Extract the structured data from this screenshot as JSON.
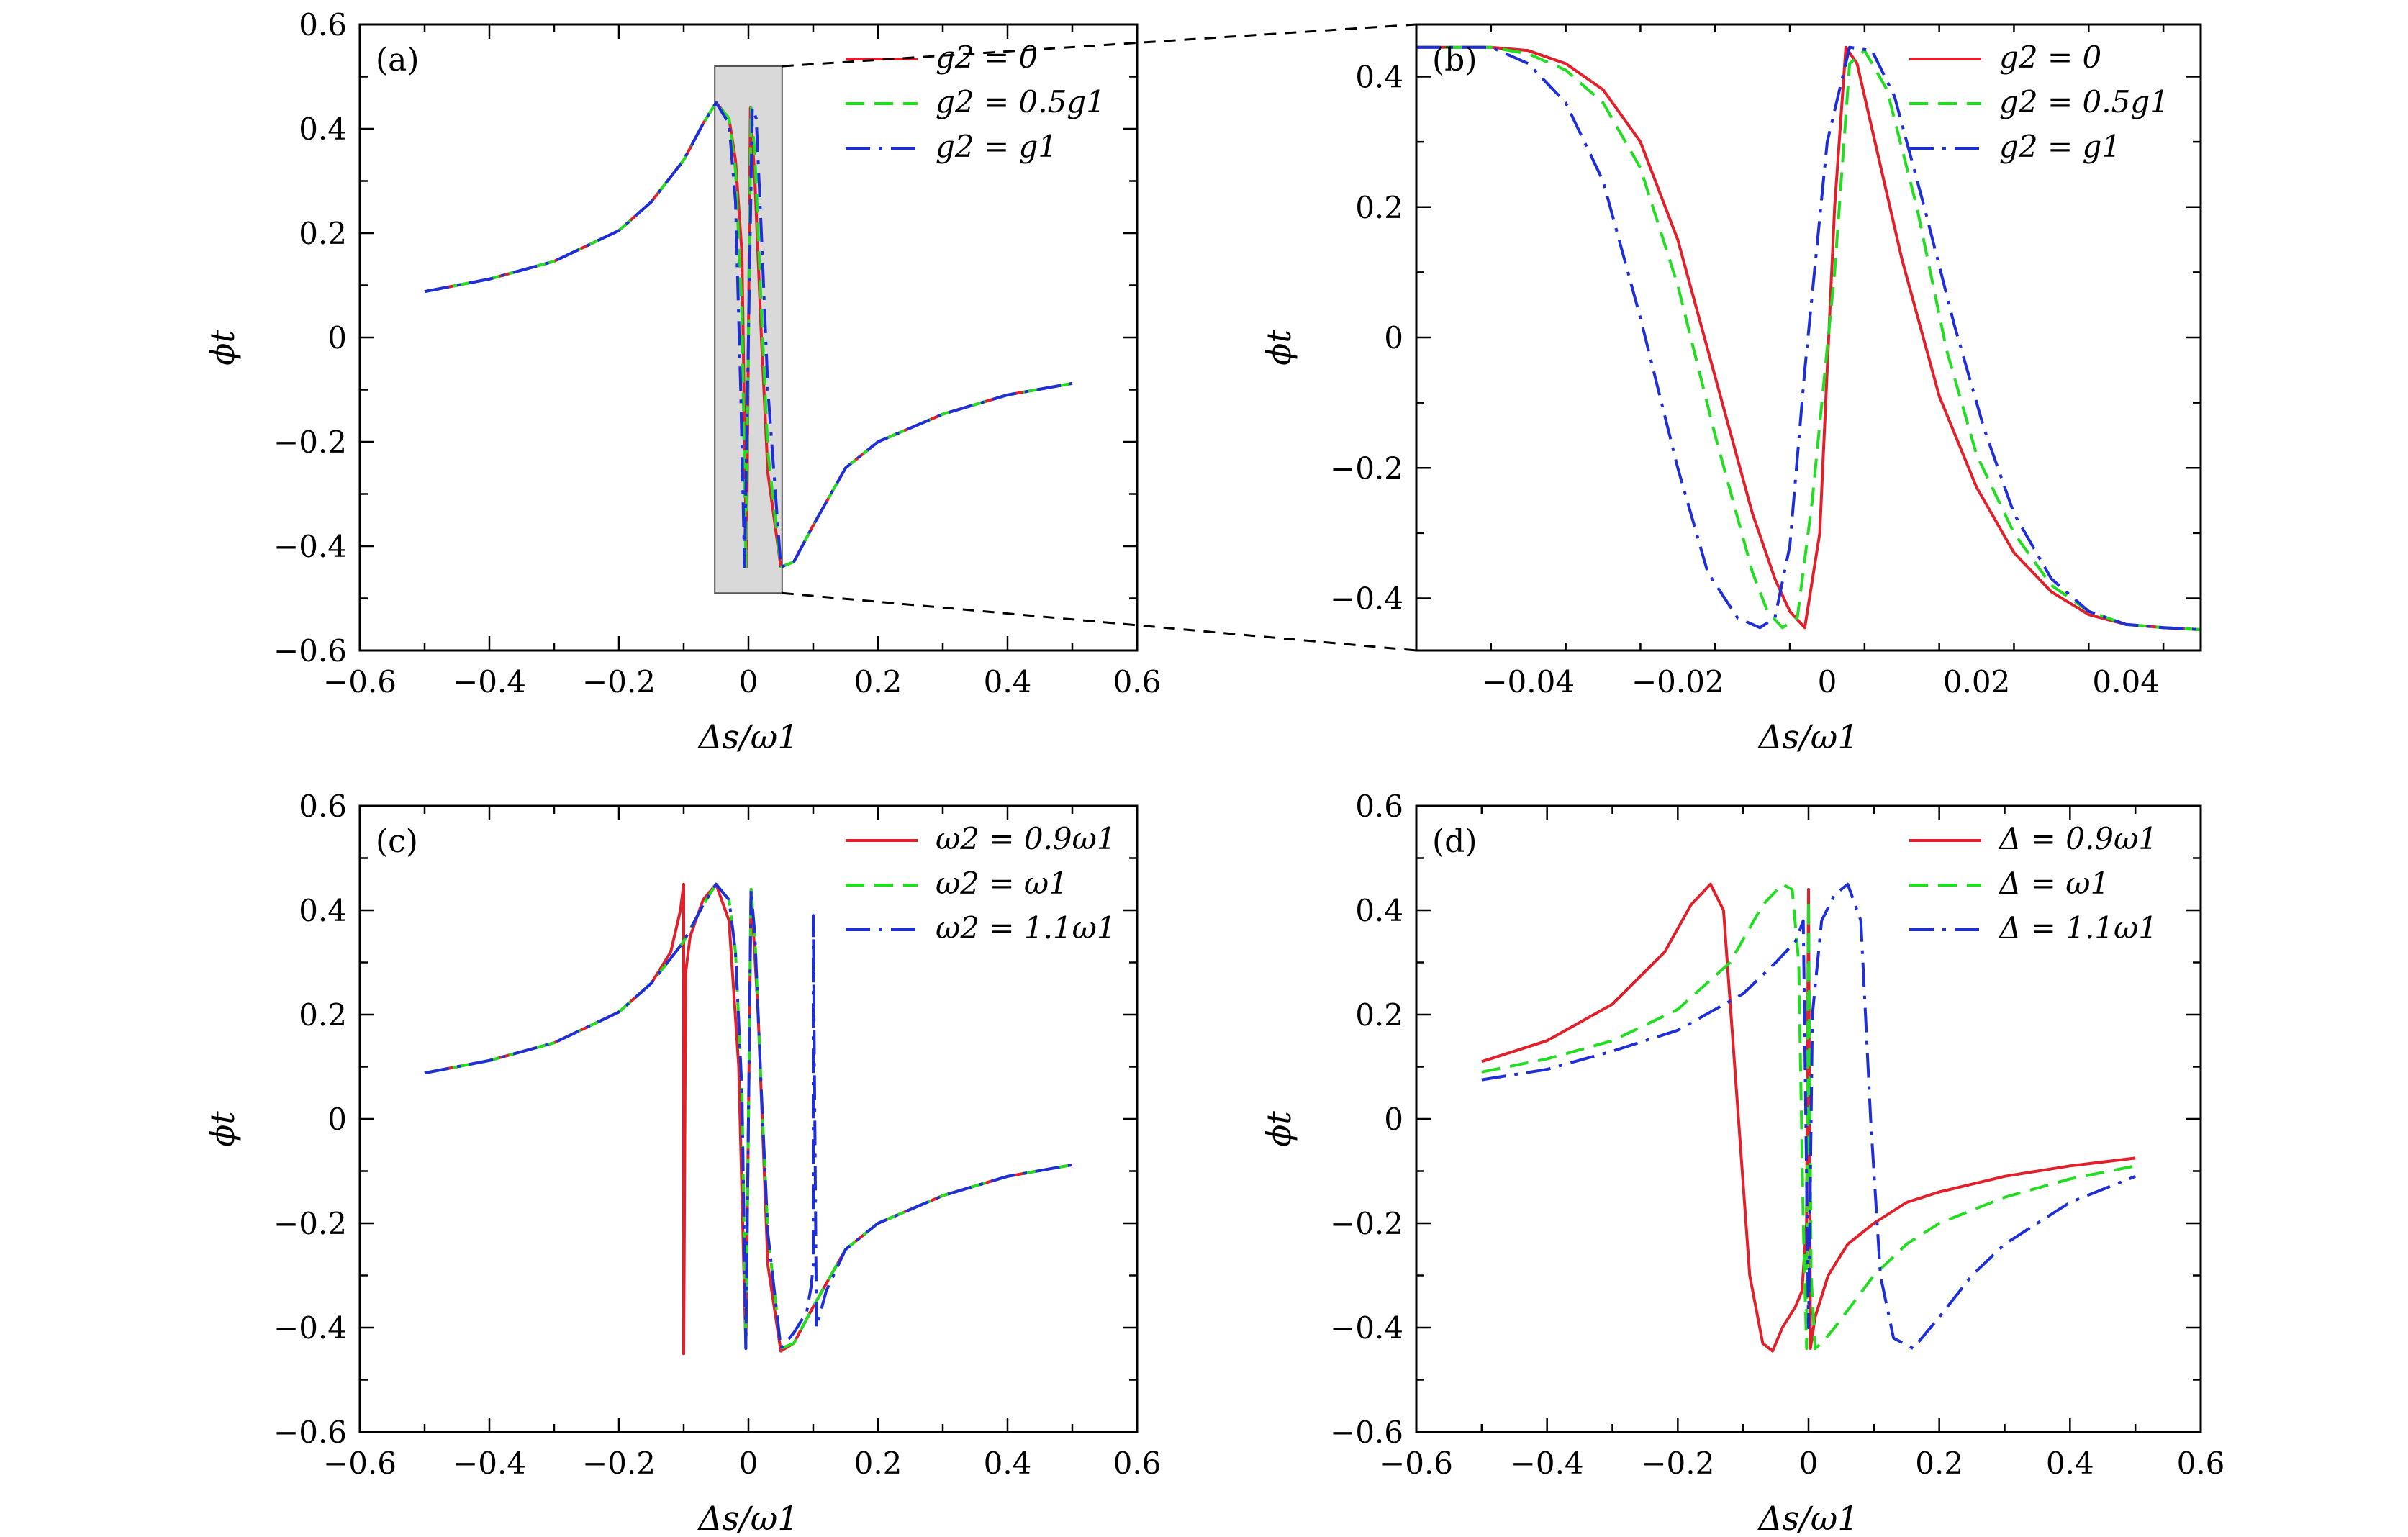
{
  "chart_data": [
    {
      "panel": "(a)",
      "type": "line",
      "xlabel": "Δs/ω1",
      "ylabel": "ϕt",
      "xlim": [
        -0.6,
        0.6
      ],
      "ylim": [
        -0.6,
        0.6
      ],
      "xticks": [
        -0.6,
        -0.4,
        -0.2,
        0,
        0.2,
        0.4,
        0.6
      ],
      "yticks": [
        -0.6,
        -0.4,
        -0.2,
        0,
        0.2,
        0.4,
        0.6
      ],
      "xtick_labels": [
        "−0.6",
        "−0.4",
        "−0.2",
        "0",
        "0.2",
        "0.4",
        "0.6"
      ],
      "ytick_labels": [
        "−0.6",
        "−0.4",
        "−0.2",
        "0",
        "0.2",
        "0.4",
        "0.6"
      ],
      "legend_position": "top-right",
      "shaded_region": {
        "x": [
          -0.052,
          0.052
        ],
        "y": [
          -0.49,
          0.52
        ]
      },
      "series": [
        {
          "name": "g2 = 0",
          "color": "#e0202a",
          "style": "solid",
          "x": [
            -0.5,
            -0.4,
            -0.3,
            -0.2,
            -0.15,
            -0.1,
            -0.07,
            -0.05,
            -0.03,
            -0.02,
            -0.01,
            -0.003,
            0,
            0.003,
            0.01,
            0.02,
            0.03,
            0.05,
            0.07,
            0.1,
            0.15,
            0.2,
            0.3,
            0.4,
            0.5
          ],
          "y": [
            0.088,
            0.112,
            0.146,
            0.205,
            0.26,
            0.34,
            0.41,
            0.45,
            0.42,
            0.34,
            0.16,
            -0.44,
            0.0,
            0.44,
            0.3,
            0.0,
            -0.26,
            -0.44,
            -0.43,
            -0.36,
            -0.25,
            -0.2,
            -0.147,
            -0.11,
            -0.088
          ]
        },
        {
          "name": "g2 = 0.5g1",
          "color": "#22dd22",
          "style": "dashed",
          "x": [
            -0.5,
            -0.4,
            -0.3,
            -0.2,
            -0.15,
            -0.1,
            -0.07,
            -0.05,
            -0.03,
            -0.02,
            -0.01,
            -0.004,
            0,
            0.004,
            0.01,
            0.02,
            0.03,
            0.05,
            0.07,
            0.1,
            0.15,
            0.2,
            0.3,
            0.4,
            0.5
          ],
          "y": [
            0.088,
            0.112,
            0.146,
            0.205,
            0.26,
            0.34,
            0.41,
            0.45,
            0.42,
            0.32,
            0.05,
            -0.44,
            0.0,
            0.44,
            0.35,
            0.05,
            -0.22,
            -0.44,
            -0.43,
            -0.36,
            -0.25,
            -0.2,
            -0.147,
            -0.11,
            -0.088
          ]
        },
        {
          "name": "g2 = g1",
          "color": "#1f2fd8",
          "style": "dashdot",
          "x": [
            -0.5,
            -0.4,
            -0.3,
            -0.2,
            -0.15,
            -0.1,
            -0.07,
            -0.05,
            -0.03,
            -0.02,
            -0.012,
            -0.006,
            0,
            0.006,
            0.012,
            0.02,
            0.03,
            0.05,
            0.07,
            0.1,
            0.15,
            0.2,
            0.3,
            0.4,
            0.5
          ],
          "y": [
            0.088,
            0.112,
            0.146,
            0.205,
            0.26,
            0.34,
            0.41,
            0.45,
            0.41,
            0.26,
            -0.1,
            -0.44,
            0.0,
            0.44,
            0.42,
            0.2,
            -0.1,
            -0.44,
            -0.43,
            -0.36,
            -0.25,
            -0.2,
            -0.147,
            -0.11,
            -0.088
          ]
        }
      ]
    },
    {
      "panel": "(b)",
      "type": "line",
      "xlabel": "Δs/ω1",
      "ylabel": "ϕt",
      "xlim": [
        -0.055,
        0.05
      ],
      "ylim": [
        -0.48,
        0.48
      ],
      "xticks": [
        -0.04,
        -0.02,
        0,
        0.02,
        0.04
      ],
      "yticks": [
        -0.4,
        -0.2,
        0,
        0.2,
        0.4
      ],
      "xtick_labels": [
        "−0.04",
        "−0.02",
        "0",
        "0.02",
        "0.04"
      ],
      "ytick_labels": [
        "−0.4",
        "−0.2",
        "0",
        "0.2",
        "0.4"
      ],
      "legend_position": "top-right",
      "series": [
        {
          "name": "g2 = 0",
          "color": "#e0202a",
          "style": "solid",
          "x": [
            -0.055,
            -0.045,
            -0.04,
            -0.035,
            -0.03,
            -0.025,
            -0.02,
            -0.015,
            -0.01,
            -0.007,
            -0.005,
            -0.003,
            -0.001,
            0.001,
            0.0025,
            0.004,
            0.006,
            0.01,
            0.015,
            0.02,
            0.025,
            0.03,
            0.035,
            0.04,
            0.045,
            0.05
          ],
          "y": [
            0.445,
            0.445,
            0.44,
            0.42,
            0.38,
            0.3,
            0.15,
            -0.06,
            -0.27,
            -0.37,
            -0.42,
            -0.445,
            -0.3,
            0.2,
            0.445,
            0.42,
            0.32,
            0.12,
            -0.09,
            -0.23,
            -0.33,
            -0.39,
            -0.425,
            -0.44,
            -0.445,
            -0.448
          ]
        },
        {
          "name": "g2 = 0.5g1",
          "color": "#22dd22",
          "style": "dashed",
          "x": [
            -0.055,
            -0.045,
            -0.04,
            -0.035,
            -0.03,
            -0.025,
            -0.02,
            -0.015,
            -0.01,
            -0.008,
            -0.006,
            -0.004,
            -0.002,
            0.001,
            0.003,
            0.005,
            0.008,
            0.012,
            0.016,
            0.02,
            0.025,
            0.03,
            0.035,
            0.04,
            0.045,
            0.05
          ],
          "y": [
            0.445,
            0.445,
            0.435,
            0.41,
            0.36,
            0.26,
            0.08,
            -0.15,
            -0.36,
            -0.42,
            -0.445,
            -0.43,
            -0.25,
            0.1,
            0.42,
            0.44,
            0.38,
            0.2,
            -0.02,
            -0.18,
            -0.3,
            -0.38,
            -0.42,
            -0.44,
            -0.445,
            -0.448
          ]
        },
        {
          "name": "g2 = g1",
          "color": "#1f2fd8",
          "style": "dashdot",
          "x": [
            -0.055,
            -0.045,
            -0.04,
            -0.035,
            -0.03,
            -0.025,
            -0.02,
            -0.016,
            -0.012,
            -0.009,
            -0.007,
            -0.005,
            -0.003,
            0.0,
            0.003,
            0.006,
            0.009,
            0.013,
            0.017,
            0.021,
            0.025,
            0.03,
            0.035,
            0.04,
            0.045,
            0.05
          ],
          "y": [
            0.445,
            0.445,
            0.42,
            0.36,
            0.24,
            0.03,
            -0.2,
            -0.36,
            -0.43,
            -0.445,
            -0.43,
            -0.32,
            -0.05,
            0.3,
            0.445,
            0.44,
            0.37,
            0.2,
            0.02,
            -0.14,
            -0.27,
            -0.37,
            -0.42,
            -0.44,
            -0.445,
            -0.448
          ]
        }
      ]
    },
    {
      "panel": "(c)",
      "type": "line",
      "xlabel": "Δs/ω1",
      "ylabel": "ϕt",
      "xlim": [
        -0.6,
        0.6
      ],
      "ylim": [
        -0.6,
        0.6
      ],
      "xticks": [
        -0.6,
        -0.4,
        -0.2,
        0,
        0.2,
        0.4,
        0.6
      ],
      "yticks": [
        -0.6,
        -0.4,
        -0.2,
        0,
        0.2,
        0.4,
        0.6
      ],
      "xtick_labels": [
        "−0.6",
        "−0.4",
        "−0.2",
        "0",
        "0.2",
        "0.4",
        "0.6"
      ],
      "ytick_labels": [
        "−0.6",
        "−0.4",
        "−0.2",
        "0",
        "0.2",
        "0.4",
        "0.6"
      ],
      "legend_position": "top-right",
      "series": [
        {
          "name": "ω2 = 0.9ω1",
          "color": "#e0202a",
          "style": "solid",
          "x": [
            -0.5,
            -0.4,
            -0.3,
            -0.2,
            -0.15,
            -0.12,
            -0.105,
            -0.1,
            -0.1,
            -0.097,
            -0.09,
            -0.07,
            -0.05,
            -0.03,
            -0.015,
            -0.004,
            0.0,
            0.004,
            0.015,
            0.03,
            0.05,
            0.07,
            0.1,
            0.15,
            0.2,
            0.3,
            0.4,
            0.5
          ],
          "y": [
            0.088,
            0.112,
            0.146,
            0.205,
            0.26,
            0.32,
            0.4,
            0.45,
            -0.45,
            0.28,
            0.35,
            0.42,
            0.45,
            0.38,
            0.1,
            -0.44,
            0.0,
            0.44,
            0.2,
            -0.28,
            -0.445,
            -0.43,
            -0.36,
            -0.25,
            -0.2,
            -0.147,
            -0.11,
            -0.088
          ]
        },
        {
          "name": "ω2 = ω1",
          "color": "#22dd22",
          "style": "dashed",
          "x": [
            -0.5,
            -0.4,
            -0.3,
            -0.2,
            -0.15,
            -0.1,
            -0.07,
            -0.05,
            -0.03,
            -0.02,
            -0.01,
            -0.004,
            0.0,
            0.004,
            0.01,
            0.02,
            0.03,
            0.05,
            0.07,
            0.1,
            0.15,
            0.2,
            0.3,
            0.4,
            0.5
          ],
          "y": [
            0.088,
            0.112,
            0.146,
            0.205,
            0.26,
            0.34,
            0.41,
            0.45,
            0.42,
            0.32,
            0.05,
            -0.44,
            0.0,
            0.44,
            0.35,
            0.05,
            -0.22,
            -0.44,
            -0.43,
            -0.36,
            -0.25,
            -0.2,
            -0.147,
            -0.11,
            -0.088
          ]
        },
        {
          "name": "ω2 = 1.1ω1",
          "color": "#1f2fd8",
          "style": "dashdot",
          "x": [
            -0.5,
            -0.4,
            -0.3,
            -0.2,
            -0.15,
            -0.1,
            -0.07,
            -0.05,
            -0.03,
            -0.02,
            -0.01,
            -0.004,
            0.0,
            0.004,
            0.01,
            0.02,
            0.03,
            0.05,
            0.07,
            0.09,
            0.097,
            0.1,
            0.1,
            0.105,
            0.12,
            0.15,
            0.2,
            0.3,
            0.4,
            0.5
          ],
          "y": [
            0.088,
            0.112,
            0.146,
            0.205,
            0.26,
            0.34,
            0.41,
            0.45,
            0.42,
            0.32,
            0.05,
            -0.44,
            0.0,
            0.44,
            0.35,
            0.05,
            -0.22,
            -0.44,
            -0.41,
            -0.37,
            -0.32,
            -0.28,
            0.39,
            -0.4,
            -0.33,
            -0.25,
            -0.2,
            -0.147,
            -0.11,
            -0.088
          ]
        }
      ]
    },
    {
      "panel": "(d)",
      "type": "line",
      "xlabel": "Δs/ω1",
      "ylabel": "ϕt",
      "xlim": [
        -0.6,
        0.6
      ],
      "ylim": [
        -0.6,
        0.6
      ],
      "xticks": [
        -0.6,
        -0.4,
        -0.2,
        0,
        0.2,
        0.4,
        0.6
      ],
      "yticks": [
        -0.6,
        -0.4,
        -0.2,
        0,
        0.2,
        0.4,
        0.6
      ],
      "xtick_labels": [
        "−0.6",
        "−0.4",
        "−0.2",
        "0",
        "0.2",
        "0.4",
        "0.6"
      ],
      "ytick_labels": [
        "−0.6",
        "−0.4",
        "−0.2",
        "0",
        "0.2",
        "0.4",
        "0.6"
      ],
      "legend_position": "top-right",
      "series": [
        {
          "name": "Δ = 0.9ω1",
          "color": "#e0202a",
          "style": "solid",
          "x": [
            -0.5,
            -0.4,
            -0.3,
            -0.22,
            -0.18,
            -0.15,
            -0.13,
            -0.11,
            -0.09,
            -0.07,
            -0.055,
            -0.04,
            -0.02,
            -0.01,
            -0.003,
            0.0,
            0.003,
            0.01,
            0.03,
            0.06,
            0.1,
            0.15,
            0.2,
            0.3,
            0.4,
            0.5
          ],
          "y": [
            0.11,
            0.15,
            0.22,
            0.32,
            0.41,
            0.45,
            0.4,
            0.05,
            -0.3,
            -0.43,
            -0.445,
            -0.4,
            -0.36,
            -0.33,
            -0.2,
            0.44,
            -0.44,
            -0.38,
            -0.3,
            -0.24,
            -0.2,
            -0.16,
            -0.14,
            -0.11,
            -0.09,
            -0.075
          ]
        },
        {
          "name": "Δ = ω1",
          "color": "#22dd22",
          "style": "dashed",
          "x": [
            -0.5,
            -0.4,
            -0.3,
            -0.2,
            -0.12,
            -0.07,
            -0.04,
            -0.025,
            -0.015,
            -0.008,
            -0.003,
            0.0,
            0.004,
            0.01,
            0.02,
            0.04,
            0.07,
            0.1,
            0.15,
            0.2,
            0.3,
            0.4,
            0.5
          ],
          "y": [
            0.09,
            0.115,
            0.15,
            0.21,
            0.3,
            0.41,
            0.45,
            0.44,
            0.3,
            -0.2,
            -0.44,
            0.42,
            -0.3,
            -0.44,
            -0.43,
            -0.4,
            -0.35,
            -0.3,
            -0.24,
            -0.2,
            -0.15,
            -0.115,
            -0.09
          ]
        },
        {
          "name": "Δ = 1.1ω1",
          "color": "#1f2fd8",
          "style": "dashdot",
          "x": [
            -0.5,
            -0.4,
            -0.3,
            -0.2,
            -0.1,
            -0.05,
            -0.02,
            -0.008,
            0.0,
            0.006,
            0.02,
            0.04,
            0.06,
            0.08,
            0.095,
            0.11,
            0.13,
            0.16,
            0.2,
            0.25,
            0.3,
            0.4,
            0.5
          ],
          "y": [
            0.075,
            0.095,
            0.13,
            0.17,
            0.24,
            0.3,
            0.34,
            0.38,
            -0.4,
            0.2,
            0.38,
            0.43,
            0.45,
            0.38,
            0.0,
            -0.3,
            -0.42,
            -0.44,
            -0.38,
            -0.3,
            -0.24,
            -0.16,
            -0.11
          ]
        }
      ]
    }
  ]
}
